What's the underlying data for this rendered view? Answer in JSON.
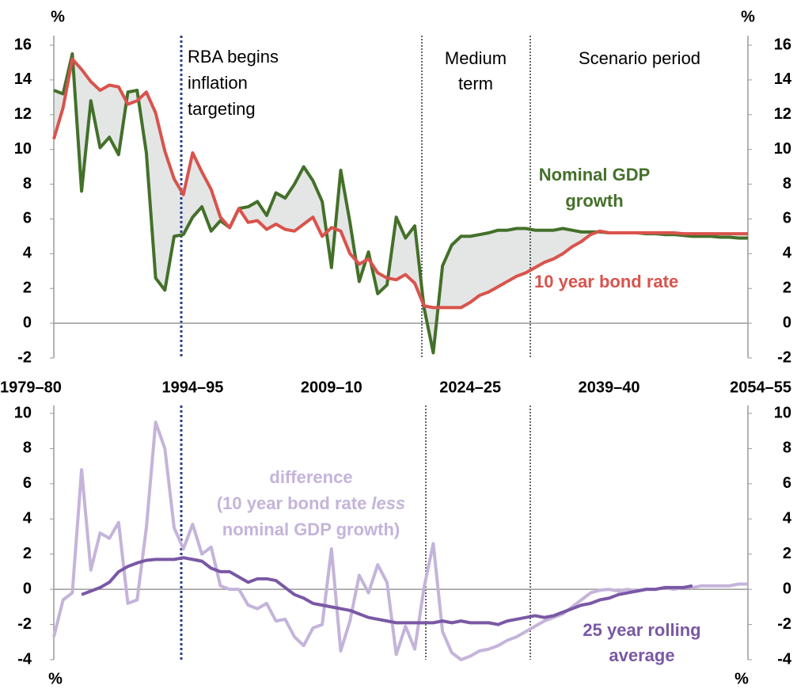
{
  "chart_data": [
    {
      "type": "line",
      "y_unit": "%",
      "categories": [
        "1979–80",
        null,
        null,
        null,
        null,
        null,
        null,
        null,
        null,
        null,
        null,
        null,
        null,
        null,
        null,
        "1994–95",
        null,
        null,
        null,
        null,
        null,
        null,
        null,
        null,
        null,
        null,
        null,
        null,
        null,
        null,
        "2009–10",
        null,
        null,
        null,
        null,
        null,
        null,
        null,
        null,
        null,
        null,
        null,
        null,
        null,
        null,
        "2024–25",
        null,
        null,
        null,
        null,
        null,
        null,
        null,
        null,
        null,
        null,
        null,
        null,
        null,
        null,
        "2039–40",
        null,
        null,
        null,
        null,
        null,
        null,
        null,
        null,
        null,
        null,
        null,
        null,
        null,
        null,
        "2054–55"
      ],
      "series": [
        {
          "name": "Nominal GDP growth",
          "color": "#44702a",
          "values": [
            13.4,
            13.2,
            15.5,
            7.6,
            12.8,
            10.1,
            10.7,
            9.7,
            13.3,
            13.4,
            9.8,
            2.6,
            1.9,
            5.0,
            5.1,
            6.1,
            6.7,
            5.3,
            5.9,
            5.5,
            6.6,
            6.7,
            7.0,
            6.2,
            7.5,
            7.2,
            8.0,
            9.0,
            8.2,
            7.0,
            3.2,
            8.8,
            5.8,
            2.4,
            4.1,
            1.7,
            2.2,
            6.1,
            4.9,
            5.6,
            0.9,
            -1.7,
            3.3,
            4.5,
            5.0,
            5.0,
            5.1,
            5.2,
            5.35,
            5.35,
            5.45,
            5.45,
            5.35,
            5.35,
            5.35,
            5.45,
            5.35,
            5.25,
            5.25,
            5.25,
            5.2,
            5.2,
            5.2,
            5.2,
            5.15,
            5.15,
            5.1,
            5.1,
            5.05,
            5.0,
            5.0,
            5.0,
            4.95,
            4.95,
            4.9,
            4.9
          ]
        },
        {
          "name": "10 year bond rate",
          "color": "#d9534c",
          "values": [
            10.6,
            12.4,
            15.2,
            14.6,
            13.9,
            13.4,
            13.7,
            13.6,
            12.6,
            12.8,
            13.3,
            12.1,
            9.9,
            8.3,
            7.4,
            9.8,
            8.7,
            7.7,
            6.1,
            5.5,
            6.6,
            5.8,
            5.9,
            5.4,
            5.7,
            5.4,
            5.3,
            5.7,
            6.1,
            5.0,
            5.5,
            5.3,
            4.0,
            3.4,
            3.7,
            2.9,
            2.6,
            2.5,
            2.8,
            2.3,
            1.0,
            0.9,
            0.9,
            0.9,
            0.9,
            1.2,
            1.6,
            1.8,
            2.1,
            2.4,
            2.7,
            2.9,
            3.2,
            3.5,
            3.7,
            4.0,
            4.4,
            4.7,
            5.1,
            5.3,
            5.2,
            5.2,
            5.2,
            5.2,
            5.2,
            5.2,
            5.2,
            5.2,
            5.15,
            5.15,
            5.15,
            5.15,
            5.15,
            5.15,
            5.15,
            5.15
          ]
        }
      ],
      "ylim": [
        -2,
        16
      ],
      "yticks": [
        -2,
        0,
        2,
        4,
        6,
        8,
        10,
        12,
        14,
        16
      ],
      "annotations": [
        {
          "lines": [
            "RBA begins",
            "inflation",
            "targeting"
          ]
        },
        {
          "lines": [
            "Medium",
            "term"
          ]
        },
        {
          "lines": [
            "Scenario period"
          ]
        },
        {
          "lines": [
            "Nominal GDP",
            "growth"
          ]
        },
        {
          "lines": [
            "10 year bond rate"
          ]
        }
      ]
    },
    {
      "type": "line",
      "y_unit": "%",
      "series": [
        {
          "name": "difference",
          "color": "#c4b4da",
          "values": [
            -2.7,
            -0.6,
            -0.2,
            6.8,
            1.1,
            3.2,
            2.9,
            3.8,
            -0.8,
            -0.6,
            3.5,
            9.5,
            8.0,
            3.5,
            2.3,
            3.7,
            2.0,
            2.4,
            0.2,
            0.0,
            0.0,
            -0.9,
            -1.1,
            -0.8,
            -1.8,
            -1.7,
            -2.7,
            -3.2,
            -2.2,
            -2.0,
            2.3,
            -3.5,
            -1.8,
            0.8,
            -0.2,
            1.4,
            0.4,
            -3.7,
            -2.1,
            -3.4,
            0.1,
            2.6,
            -2.4,
            -3.6,
            -4.0,
            -3.8,
            -3.5,
            -3.4,
            -3.2,
            -2.9,
            -2.7,
            -2.4,
            -2.1,
            -1.8,
            -1.6,
            -1.4,
            -1.0,
            -0.6,
            -0.2,
            -0.05,
            0.0,
            -0.1,
            0.0,
            -0.1,
            0.0,
            0.0,
            0.1,
            0.0,
            0.1,
            0.1,
            0.2,
            0.2,
            0.2,
            0.2,
            0.3,
            0.3
          ]
        },
        {
          "name": "25 year rolling average",
          "color": "#7a58a5",
          "values": [
            null,
            null,
            null,
            -0.3,
            -0.1,
            0.1,
            0.4,
            1.0,
            1.3,
            1.5,
            1.65,
            1.7,
            1.7,
            1.7,
            1.8,
            1.7,
            1.6,
            1.2,
            1.0,
            1.0,
            0.7,
            0.4,
            0.6,
            0.6,
            0.5,
            0.1,
            -0.3,
            -0.5,
            -0.8,
            -0.9,
            -1.0,
            -1.1,
            -1.2,
            -1.4,
            -1.6,
            -1.7,
            -1.8,
            -1.9,
            -1.9,
            -1.9,
            -1.9,
            -1.9,
            -1.8,
            -1.9,
            -1.8,
            -1.9,
            -1.9,
            -1.9,
            -2.0,
            -1.8,
            -1.7,
            -1.6,
            -1.5,
            -1.6,
            -1.5,
            -1.3,
            -1.1,
            -0.9,
            -0.8,
            -0.6,
            -0.5,
            -0.3,
            -0.2,
            -0.1,
            0.0,
            0.0,
            0.1,
            0.1,
            0.1,
            0.2,
            null,
            null,
            null,
            null,
            null,
            null
          ]
        }
      ],
      "ylim": [
        -4,
        10
      ],
      "yticks": [
        -4,
        -2,
        0,
        2,
        4,
        6,
        8,
        10
      ],
      "annotations": [
        {
          "lines": [
            [
              "difference"
            ],
            [
              "(10 year bond rate",
              "less"
            ],
            [
              "nominal GDP growth)"
            ]
          ]
        },
        {
          "lines": [
            [
              "25 year rolling"
            ],
            [
              "average"
            ]
          ]
        }
      ]
    }
  ]
}
